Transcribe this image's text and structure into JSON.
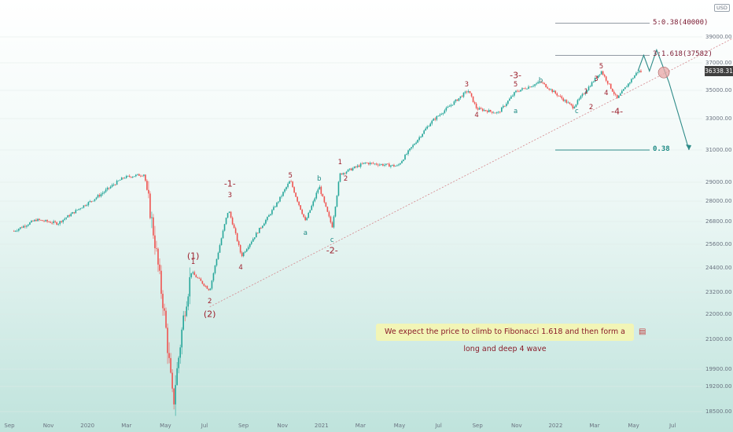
{
  "chart_data": {
    "type": "candlestick",
    "title": "",
    "xlabel": "",
    "ylabel": "",
    "currency": "USD",
    "current_price_label": "36338.31",
    "y_axis_ticks": [
      "39000.00",
      "37000.00",
      "35000.00",
      "33000.00",
      "31000.00",
      "29000.00",
      "28000.00",
      "26800.00",
      "25600.00",
      "24400.00",
      "23200.00",
      "22000.00",
      "21000.00",
      "19900.00",
      "19200.00",
      "18500.00"
    ],
    "x_axis_ticks": [
      "Sep",
      "Nov",
      "2020",
      "Mar",
      "May",
      "Jul",
      "Sep",
      "Nov",
      "2021",
      "Mar",
      "May",
      "Jul",
      "Sep",
      "Nov",
      "2022",
      "Mar",
      "May",
      "Jul"
    ],
    "approximate_closes": [
      {
        "date": "2019-08",
        "close": 26300
      },
      {
        "date": "2019-09",
        "close": 26900
      },
      {
        "date": "2019-10",
        "close": 26700
      },
      {
        "date": "2019-11",
        "close": 27600
      },
      {
        "date": "2019-12",
        "close": 28400
      },
      {
        "date": "2020-01",
        "close": 29300
      },
      {
        "date": "2020-02-12",
        "close": 29500
      },
      {
        "date": "2020-02-28",
        "close": 25400
      },
      {
        "date": "2020-03-23",
        "close": 18600
      },
      {
        "date": "2020-04-17",
        "close": 24200
      },
      {
        "date": "2020-05-13",
        "close": 23300
      },
      {
        "date": "2020-06-08",
        "close": 27500
      },
      {
        "date": "2020-06-26",
        "close": 25000
      },
      {
        "date": "2020-08-01",
        "close": 27000
      },
      {
        "date": "2020-09-02",
        "close": 29100
      },
      {
        "date": "2020-09-23",
        "close": 26800
      },
      {
        "date": "2020-10-12",
        "close": 28800
      },
      {
        "date": "2020-10-30",
        "close": 26500
      },
      {
        "date": "2020-11-10",
        "close": 29500
      },
      {
        "date": "2020-12-15",
        "close": 30200
      },
      {
        "date": "2021-01-29",
        "close": 30000
      },
      {
        "date": "2021-03-15",
        "close": 32700
      },
      {
        "date": "2021-05-07",
        "close": 35000
      },
      {
        "date": "2021-05-19",
        "close": 33700
      },
      {
        "date": "2021-06-18",
        "close": 33400
      },
      {
        "date": "2021-07-12",
        "close": 34900
      },
      {
        "date": "2021-08-16",
        "close": 35600
      },
      {
        "date": "2021-09-30",
        "close": 33800
      },
      {
        "date": "2021-11-08",
        "close": 36400
      },
      {
        "date": "2021-11-30",
        "close": 34400
      },
      {
        "date": "2021-12-29",
        "close": 36400
      },
      {
        "date": "2022-01-04",
        "close": 36338
      }
    ],
    "levels": [
      {
        "label": "5:0.38(40000)",
        "value": 40000
      },
      {
        "label": "3:1.618(37582)",
        "value": 37582
      },
      {
        "label": "0.38",
        "value": 31000
      }
    ],
    "wave_labels": [
      {
        "text": "(1)",
        "date": "2020-04-20",
        "price": 25000,
        "color": "red"
      },
      {
        "text": "1",
        "date": "2020-04-20",
        "price": 24700,
        "color": "red"
      },
      {
        "text": "2",
        "date": "2020-05-13",
        "price": 22700,
        "color": "red"
      },
      {
        "text": "(2)",
        "date": "2020-05-13",
        "price": 22000,
        "color": "red"
      },
      {
        "text": "4",
        "date": "2020-06-25",
        "price": 24400,
        "color": "red"
      },
      {
        "text": "-1-",
        "date": "2020-06-10",
        "price": 28900,
        "color": "red"
      },
      {
        "text": "3",
        "date": "2020-06-10",
        "price": 28300,
        "color": "red"
      },
      {
        "text": "5",
        "date": "2020-09-02",
        "price": 29400,
        "color": "red"
      },
      {
        "text": "a",
        "date": "2020-09-23",
        "price": 26200,
        "color": "teal"
      },
      {
        "text": "b",
        "date": "2020-10-12",
        "price": 29200,
        "color": "teal"
      },
      {
        "text": "c",
        "date": "2020-10-30",
        "price": 25800,
        "color": "teal"
      },
      {
        "text": "-2-",
        "date": "2020-10-30",
        "price": 25300,
        "color": "red"
      },
      {
        "text": "1",
        "date": "2020-11-10",
        "price": 30200,
        "color": "red"
      },
      {
        "text": "2",
        "date": "2020-11-18",
        "price": 29200,
        "color": "red"
      },
      {
        "text": "3",
        "date": "2021-05-05",
        "price": 35400,
        "color": "red"
      },
      {
        "text": "4",
        "date": "2021-05-19",
        "price": 33200,
        "color": "red"
      },
      {
        "text": "-3-",
        "date": "2021-07-12",
        "price": 36100,
        "color": "red"
      },
      {
        "text": "5",
        "date": "2021-07-12",
        "price": 35400,
        "color": "red"
      },
      {
        "text": "a",
        "date": "2021-07-12",
        "price": 33500,
        "color": "teal"
      },
      {
        "text": "b",
        "date": "2021-08-16",
        "price": 35700,
        "color": "teal"
      },
      {
        "text": "1",
        "date": "2021-10-18",
        "price": 34900,
        "color": "red"
      },
      {
        "text": "2",
        "date": "2021-10-25",
        "price": 33800,
        "color": "red"
      },
      {
        "text": "c",
        "date": "2021-10-05",
        "price": 33500,
        "color": "teal"
      },
      {
        "text": "3",
        "date": "2021-11-01",
        "price": 35800,
        "color": "red"
      },
      {
        "text": "5",
        "date": "2021-11-08",
        "price": 36700,
        "color": "red"
      },
      {
        "text": "4",
        "date": "2021-11-15",
        "price": 34800,
        "color": "red"
      },
      {
        "text": "-4-",
        "date": "2021-11-30",
        "price": 33500,
        "color": "red"
      }
    ],
    "projection_path": [
      {
        "date": "2021-12-29",
        "price": 36400
      },
      {
        "date": "2022-01-06",
        "price": 37582
      },
      {
        "date": "2022-01-14",
        "price": 36400
      },
      {
        "date": "2022-01-24",
        "price": 38000
      },
      {
        "date": "2022-02-10",
        "price": 35600
      },
      {
        "date": "2022-03-10",
        "price": 31000
      }
    ],
    "trendline": [
      {
        "date": "2020-05-13",
        "price": 22400
      },
      {
        "date": "2022-07-01",
        "price": 40300
      }
    ],
    "note": "We expect the price to climb to Fibonacci 1.618 and then form a long and deep 4 wave",
    "colors": {
      "up": "#26a69a",
      "down": "#ef5350",
      "projection": "#2e8b88",
      "annotation_red": "#9c1f2c",
      "annotation_teal": "#1d8a84",
      "trendline": "#d4868c",
      "fib_line": "#6f7a86"
    }
  }
}
